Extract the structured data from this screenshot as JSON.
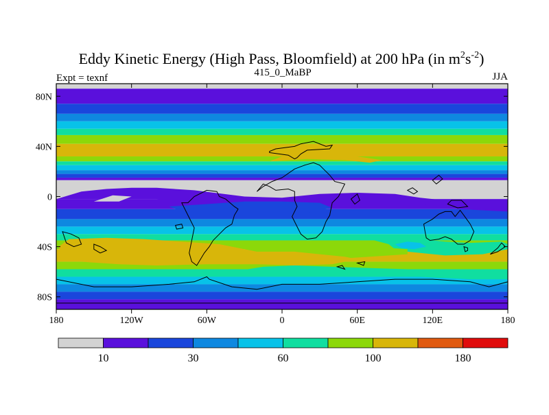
{
  "chart_data": {
    "type": "filled-contour-map",
    "title": {
      "main": "Eddy Kinetic Energy (High Pass, Bloomfield) at 200 hPa (in m",
      "sup1": "2",
      "mid": "s",
      "sup2": "-2",
      "end": ")"
    },
    "subtitle": "415_0_MaBP",
    "left_label": "Expt = texnf",
    "right_label": "JJA",
    "xlim": [
      -180,
      180
    ],
    "ylim": [
      -90,
      90
    ],
    "x_ticks": [
      {
        "value": -180,
        "label": "180"
      },
      {
        "value": -120,
        "label": "120W"
      },
      {
        "value": -60,
        "label": "60W"
      },
      {
        "value": 0,
        "label": "0"
      },
      {
        "value": 60,
        "label": "60E"
      },
      {
        "value": 120,
        "label": "120E"
      },
      {
        "value": 180,
        "label": "180"
      }
    ],
    "y_ticks": [
      {
        "value": 80,
        "label": "80N"
      },
      {
        "value": 40,
        "label": "40N"
      },
      {
        "value": 0,
        "label": "0"
      },
      {
        "value": -40,
        "label": "40S"
      },
      {
        "value": -80,
        "label": "80S"
      }
    ],
    "levels": [
      {
        "name": "below 10",
        "color": "#d3d3d3"
      },
      {
        "name": "10-20",
        "color": "#5a10dc"
      },
      {
        "name": "20-30",
        "color": "#1a46dc"
      },
      {
        "name": "30-45",
        "color": "#0e88e0"
      },
      {
        "name": "45-60",
        "color": "#08c2e8"
      },
      {
        "name": "60-80",
        "color": "#10dea0"
      },
      {
        "name": "80-100",
        "color": "#8cd80a"
      },
      {
        "name": "100-140",
        "color": "#d8b60a"
      },
      {
        "name": "140-180",
        "color": "#e05a10"
      },
      {
        "name": "above 180",
        "color": "#e00c0c"
      }
    ],
    "colorbar_labels": [
      {
        "after_box": 1,
        "label": "10"
      },
      {
        "after_box": 3,
        "label": "30"
      },
      {
        "after_box": 5,
        "label": "60"
      },
      {
        "after_box": 7,
        "label": "100"
      },
      {
        "after_box": 9,
        "label": "180"
      }
    ],
    "bands": [
      {
        "lat_top": 90,
        "lat_bottom": 86,
        "level": 0
      },
      {
        "lat_top": 86,
        "lat_bottom": 74,
        "level": 1
      },
      {
        "lat_top": 74,
        "lat_bottom": 66,
        "level": 2
      },
      {
        "lat_top": 66,
        "lat_bottom": 60,
        "level": 3
      },
      {
        "lat_top": 60,
        "lat_bottom": 54,
        "level": 4
      },
      {
        "lat_top": 54,
        "lat_bottom": 49,
        "level": 5
      },
      {
        "lat_top": 49,
        "lat_bottom": 42,
        "level": 6
      },
      {
        "lat_top": 42,
        "lat_bottom": 32,
        "level": 7
      },
      {
        "lat_top": 32,
        "lat_bottom": 28,
        "level": 6
      },
      {
        "lat_top": 28,
        "lat_bottom": 25,
        "level": 5
      },
      {
        "lat_top": 25,
        "lat_bottom": 21,
        "level": 4
      },
      {
        "lat_top": 21,
        "lat_bottom": 18,
        "level": 3
      },
      {
        "lat_top": 18,
        "lat_bottom": 15,
        "level": 2
      },
      {
        "lat_top": 15,
        "lat_bottom": 13,
        "level": 1
      },
      {
        "lat_top": 13,
        "lat_bottom": -2,
        "level": 0
      },
      {
        "lat_top": -2,
        "lat_bottom": -10,
        "level": 1
      },
      {
        "lat_top": -10,
        "lat_bottom": -18,
        "level": 2
      },
      {
        "lat_top": -18,
        "lat_bottom": -24,
        "level": 3
      },
      {
        "lat_top": -24,
        "lat_bottom": -30,
        "level": 4
      },
      {
        "lat_top": -30,
        "lat_bottom": -35,
        "level": 5
      },
      {
        "lat_top": -35,
        "lat_bottom": -42,
        "level": 6
      },
      {
        "lat_top": -42,
        "lat_bottom": -52,
        "level": 7
      },
      {
        "lat_top": -52,
        "lat_bottom": -58,
        "level": 6
      },
      {
        "lat_top": -58,
        "lat_bottom": -64,
        "level": 5
      },
      {
        "lat_top": -64,
        "lat_bottom": -70,
        "level": 4
      },
      {
        "lat_top": -70,
        "lat_bottom": -76,
        "level": 3
      },
      {
        "lat_top": -76,
        "lat_bottom": -82,
        "level": 2
      },
      {
        "lat_top": -82,
        "lat_bottom": -90,
        "level": 1
      }
    ],
    "patches": [
      {
        "level": 1,
        "points": [
          [
            -180,
            -2
          ],
          [
            -160,
            4
          ],
          [
            -140,
            6
          ],
          [
            -120,
            7
          ],
          [
            -100,
            7
          ],
          [
            -70,
            5
          ],
          [
            -30,
            0
          ],
          [
            0,
            -1
          ],
          [
            30,
            2
          ],
          [
            60,
            3
          ],
          [
            90,
            2
          ],
          [
            110,
            -1
          ],
          [
            140,
            -4
          ],
          [
            160,
            -6
          ],
          [
            180,
            -8
          ],
          [
            180,
            -12
          ],
          [
            140,
            -10
          ],
          [
            110,
            -6
          ],
          [
            80,
            -4
          ],
          [
            50,
            -4
          ],
          [
            20,
            -6
          ],
          [
            -10,
            -8
          ],
          [
            -50,
            -6
          ],
          [
            -100,
            -2
          ],
          [
            -150,
            -2
          ]
        ]
      },
      {
        "level": 2,
        "points": [
          [
            -90,
            -8
          ],
          [
            -60,
            -6
          ],
          [
            -30,
            -4
          ],
          [
            0,
            -4
          ],
          [
            30,
            -5
          ],
          [
            40,
            -9
          ],
          [
            20,
            -13
          ],
          [
            0,
            -14
          ],
          [
            -40,
            -13
          ],
          [
            -80,
            -12
          ]
        ]
      },
      {
        "level": 5,
        "points": [
          [
            70,
            -34
          ],
          [
            90,
            -33
          ],
          [
            110,
            -34
          ],
          [
            130,
            -36
          ],
          [
            150,
            -37
          ],
          [
            175,
            -36
          ],
          [
            180,
            -38
          ],
          [
            180,
            -42
          ],
          [
            160,
            -46
          ],
          [
            130,
            -47
          ],
          [
            100,
            -44
          ],
          [
            90,
            -42
          ],
          [
            85,
            -38
          ]
        ]
      },
      {
        "level": 6,
        "points": [
          [
            -25,
            -36
          ],
          [
            0,
            -35
          ],
          [
            30,
            -36
          ],
          [
            50,
            -38
          ],
          [
            70,
            -40
          ],
          [
            100,
            -42
          ],
          [
            100,
            -46
          ],
          [
            70,
            -48
          ],
          [
            40,
            -50
          ],
          [
            10,
            -50
          ],
          [
            -10,
            -47
          ],
          [
            -30,
            -42
          ],
          [
            -40,
            -38
          ]
        ]
      },
      {
        "level": 7,
        "points": [
          [
            -170,
            -34
          ],
          [
            -140,
            -33
          ],
          [
            -110,
            -34
          ],
          [
            -80,
            -36
          ],
          [
            -50,
            -38
          ],
          [
            -30,
            -42
          ],
          [
            -20,
            -44
          ],
          [
            10,
            -44
          ],
          [
            30,
            -46
          ],
          [
            50,
            -48
          ],
          [
            60,
            -50
          ],
          [
            40,
            -54
          ],
          [
            10,
            -55
          ],
          [
            -20,
            -54
          ],
          [
            -60,
            -54
          ],
          [
            -100,
            -55
          ],
          [
            -130,
            -54
          ],
          [
            -160,
            -52
          ],
          [
            -175,
            -48
          ],
          [
            -178,
            -40
          ]
        ]
      },
      {
        "level": 4,
        "points": [
          [
            90,
            -38
          ],
          [
            100,
            -36
          ],
          [
            110,
            -37
          ],
          [
            115,
            -40
          ],
          [
            105,
            -42
          ],
          [
            95,
            -41
          ]
        ]
      },
      {
        "level": 5,
        "points": [
          [
            -15,
            -56
          ],
          [
            10,
            -55
          ],
          [
            40,
            -56
          ],
          [
            70,
            -57
          ],
          [
            100,
            -58
          ],
          [
            130,
            -60
          ],
          [
            160,
            -62
          ],
          [
            180,
            -63
          ],
          [
            180,
            -66
          ],
          [
            150,
            -66
          ],
          [
            110,
            -64
          ],
          [
            70,
            -63
          ],
          [
            30,
            -62
          ],
          [
            -10,
            -61
          ],
          [
            -40,
            -60
          ]
        ]
      },
      {
        "level": 7,
        "points": [
          [
            -10,
            28
          ],
          [
            20,
            30
          ],
          [
            50,
            29
          ],
          [
            70,
            27
          ],
          [
            80,
            29
          ],
          [
            60,
            32
          ],
          [
            30,
            33
          ],
          [
            0,
            32
          ]
        ]
      },
      {
        "level": 0,
        "points": [
          [
            -150,
            -4
          ],
          [
            -130,
            -4
          ],
          [
            -120,
            0
          ],
          [
            -135,
            1
          ]
        ]
      }
    ],
    "land_outlines": [
      [
        [
          -10,
          36
        ],
        [
          -5,
          38
        ],
        [
          10,
          40
        ],
        [
          15,
          42
        ],
        [
          25,
          44
        ],
        [
          35,
          40
        ],
        [
          40,
          41
        ],
        [
          38,
          38
        ],
        [
          20,
          37
        ],
        [
          15,
          34
        ],
        [
          12,
          31
        ],
        [
          10,
          30
        ],
        [
          5,
          33
        ],
        [
          -10,
          35
        ]
      ],
      [
        [
          -20,
          4
        ],
        [
          -15,
          10
        ],
        [
          -10,
          8
        ],
        [
          -5,
          5
        ],
        [
          5,
          6
        ],
        [
          10,
          4
        ],
        [
          10,
          -3
        ],
        [
          12,
          -8
        ],
        [
          8,
          -16
        ],
        [
          12,
          -24
        ],
        [
          15,
          -30
        ],
        [
          20,
          -34
        ],
        [
          27,
          -33
        ],
        [
          32,
          -28
        ],
        [
          35,
          -20
        ],
        [
          38,
          -15
        ],
        [
          40,
          -5
        ],
        [
          45,
          0
        ],
        [
          50,
          10
        ],
        [
          42,
          12
        ],
        [
          38,
          17
        ],
        [
          33,
          22
        ],
        [
          30,
          25
        ],
        [
          25,
          27
        ],
        [
          18,
          25
        ],
        [
          10,
          22
        ],
        [
          0,
          15
        ],
        [
          -8,
          12
        ],
        [
          -15,
          8
        ]
      ],
      [
        [
          -75,
          -5
        ],
        [
          -70,
          0
        ],
        [
          -60,
          5
        ],
        [
          -52,
          4
        ],
        [
          -50,
          0
        ],
        [
          -45,
          -2
        ],
        [
          -38,
          -8
        ],
        [
          -35,
          -10
        ],
        [
          -38,
          -15
        ],
        [
          -40,
          -22
        ],
        [
          -45,
          -25
        ],
        [
          -50,
          -30
        ],
        [
          -55,
          -35
        ],
        [
          -58,
          -40
        ],
        [
          -62,
          -45
        ],
        [
          -65,
          -50
        ],
        [
          -68,
          -55
        ],
        [
          -72,
          -52
        ],
        [
          -74,
          -45
        ],
        [
          -72,
          -35
        ],
        [
          -70,
          -25
        ],
        [
          -75,
          -15
        ],
        [
          -80,
          -5
        ]
      ],
      [
        [
          113,
          -22
        ],
        [
          120,
          -18
        ],
        [
          125,
          -14
        ],
        [
          130,
          -12
        ],
        [
          135,
          -12
        ],
        [
          138,
          -16
        ],
        [
          142,
          -11
        ],
        [
          145,
          -15
        ],
        [
          150,
          -22
        ],
        [
          153,
          -28
        ],
        [
          150,
          -35
        ],
        [
          145,
          -38
        ],
        [
          140,
          -38
        ],
        [
          135,
          -34
        ],
        [
          130,
          -32
        ],
        [
          125,
          -34
        ],
        [
          118,
          -35
        ],
        [
          115,
          -33
        ],
        [
          114,
          -28
        ]
      ],
      [
        [
          145,
          -40
        ],
        [
          148,
          -41
        ],
        [
          148,
          -43
        ],
        [
          146,
          -44
        ]
      ],
      [
        [
          166,
          -46
        ],
        [
          172,
          -41
        ],
        [
          175,
          -37
        ],
        [
          178,
          -40
        ],
        [
          172,
          -44
        ]
      ],
      [
        [
          -180,
          -66
        ],
        [
          -150,
          -72
        ],
        [
          -120,
          -72
        ],
        [
          -90,
          -70
        ],
        [
          -70,
          -68
        ],
        [
          -60,
          -64
        ],
        [
          -58,
          -66
        ],
        [
          -40,
          -72
        ],
        [
          -20,
          -74
        ],
        [
          0,
          -70
        ],
        [
          30,
          -70
        ],
        [
          60,
          -68
        ],
        [
          90,
          -66
        ],
        [
          120,
          -66
        ],
        [
          150,
          -68
        ],
        [
          165,
          -72
        ],
        [
          180,
          -68
        ],
        [
          180,
          -85
        ],
        [
          -180,
          -85
        ]
      ],
      [
        [
          -175,
          -28
        ],
        [
          -168,
          -30
        ],
        [
          -162,
          -33
        ],
        [
          -160,
          -38
        ],
        [
          -166,
          -40
        ],
        [
          -172,
          -37
        ]
      ],
      [
        [
          -150,
          -38
        ],
        [
          -145,
          -40
        ],
        [
          -140,
          -43
        ],
        [
          -145,
          -45
        ],
        [
          -150,
          -42
        ]
      ],
      [
        [
          55,
          -2
        ],
        [
          60,
          2
        ],
        [
          62,
          -3
        ],
        [
          58,
          -6
        ]
      ],
      [
        [
          100,
          5
        ],
        [
          105,
          2
        ],
        [
          108,
          4
        ],
        [
          104,
          7
        ]
      ],
      [
        [
          120,
          13
        ],
        [
          125,
          17
        ],
        [
          128,
          14
        ],
        [
          123,
          10
        ]
      ],
      [
        [
          135,
          -3
        ],
        [
          143,
          -3
        ],
        [
          148,
          -8
        ],
        [
          140,
          -9
        ],
        [
          132,
          -6
        ]
      ],
      [
        [
          -85,
          -23
        ],
        [
          -80,
          -22
        ],
        [
          -79,
          -25
        ],
        [
          -84,
          -26
        ]
      ],
      [
        [
          44,
          -56
        ],
        [
          48,
          -55
        ],
        [
          50,
          -58
        ]
      ],
      [
        [
          60,
          -53
        ],
        [
          66,
          -52
        ],
        [
          65,
          -55
        ]
      ]
    ]
  }
}
